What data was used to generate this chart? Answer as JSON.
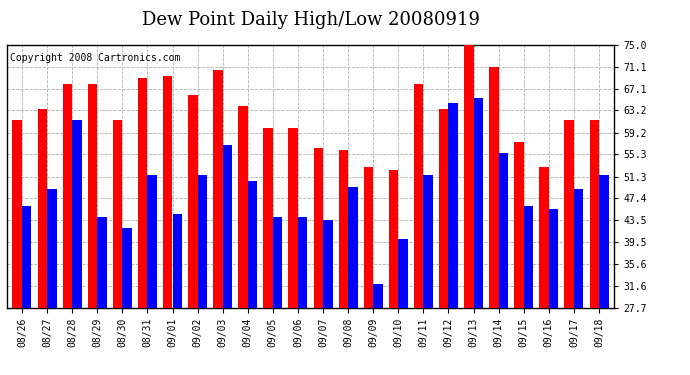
{
  "title": "Dew Point Daily High/Low 20080919",
  "copyright": "Copyright 2008 Cartronics.com",
  "dates": [
    "08/26",
    "08/27",
    "08/28",
    "08/29",
    "08/30",
    "08/31",
    "09/01",
    "09/02",
    "09/03",
    "09/04",
    "09/05",
    "09/06",
    "09/07",
    "09/08",
    "09/09",
    "09/10",
    "09/11",
    "09/12",
    "09/13",
    "09/14",
    "09/15",
    "09/16",
    "09/17",
    "09/18"
  ],
  "highs": [
    61.5,
    63.5,
    68.0,
    68.0,
    61.5,
    69.0,
    69.5,
    66.0,
    70.5,
    64.0,
    60.0,
    60.0,
    56.5,
    56.0,
    53.0,
    52.5,
    68.0,
    63.5,
    75.0,
    71.0,
    57.5,
    53.0,
    61.5,
    61.5
  ],
  "lows": [
    46.0,
    49.0,
    61.5,
    44.0,
    42.0,
    51.5,
    44.5,
    51.5,
    57.0,
    50.5,
    44.0,
    44.0,
    43.5,
    49.5,
    32.0,
    40.0,
    51.5,
    64.5,
    65.5,
    55.5,
    46.0,
    45.5,
    49.0,
    51.5
  ],
  "high_color": "#ff0000",
  "low_color": "#0000ff",
  "bg_color": "#ffffff",
  "grid_color": "#b0b0b0",
  "yticks": [
    27.7,
    31.6,
    35.6,
    39.5,
    43.5,
    47.4,
    51.3,
    55.3,
    59.2,
    63.2,
    67.1,
    71.1,
    75.0
  ],
  "ymin": 27.7,
  "ymax": 75.0,
  "title_fontsize": 13,
  "copyright_fontsize": 7,
  "tick_fontsize": 7,
  "bar_width": 0.38
}
